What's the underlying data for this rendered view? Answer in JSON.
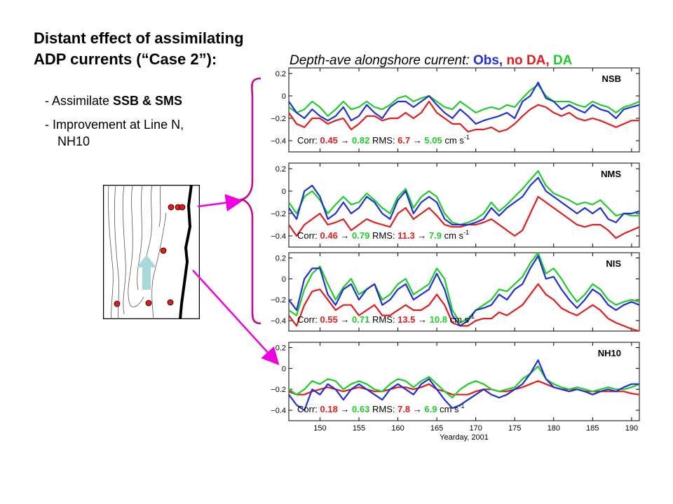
{
  "title": {
    "line1": "Distant effect of assimilating",
    "line2": "ADP currents (“Case 2”):"
  },
  "bullets": [
    {
      "prefix": "- Assimilate ",
      "bold": "SSB & SMS"
    },
    {
      "line1": "- Improvement at Line N,",
      "line2": "NH10"
    }
  ],
  "heading": {
    "text": "Depth-ave alongshore current: ",
    "obs": "Obs",
    "sep1": ", ",
    "nodа": "",
    "no_da": "no DA",
    "sep2": ", ",
    "da": "DA"
  },
  "colors": {
    "obs": "#1f2fd6",
    "no_da": "#e21c1c",
    "da": "#1fcc2a",
    "arrow": "#f000e0",
    "brace": "#c8008c",
    "map_arrow": "#a8d8d8"
  },
  "map": {
    "stations": 9
  },
  "chart_data": [
    {
      "type": "line",
      "panel_label": "NSB",
      "ylim": [
        -0.5,
        0.25
      ],
      "yticks": [
        "0.2",
        "0",
        "−0.2",
        "−0.4"
      ],
      "ytick_values": [
        0.2,
        0,
        -0.2,
        -0.4
      ],
      "xlim": [
        146,
        191
      ],
      "stats": {
        "corr_label": "Corr: ",
        "corr_before": "0.45",
        "corr_after": "0.82",
        "rms_label": "RMS: ",
        "rms_before": "6.7",
        "rms_after": "5.05",
        "unit": " cm s",
        "unit_exp": "-1"
      },
      "x": [
        146,
        147,
        148,
        149,
        150,
        151,
        152,
        153,
        154,
        155,
        156,
        157,
        158,
        159,
        160,
        161,
        162,
        163,
        164,
        165,
        166,
        167,
        168,
        169,
        170,
        171,
        172,
        173,
        174,
        175,
        176,
        177,
        178,
        179,
        180,
        181,
        182,
        183,
        184,
        185,
        186,
        187,
        188,
        189,
        190,
        191
      ],
      "series": [
        {
          "name": "Obs",
          "values": [
            -0.05,
            -0.15,
            -0.2,
            -0.12,
            -0.18,
            -0.22,
            -0.18,
            -0.1,
            -0.22,
            -0.18,
            -0.08,
            -0.15,
            -0.2,
            -0.1,
            -0.05,
            -0.05,
            -0.1,
            -0.05,
            0.0,
            -0.08,
            -0.15,
            -0.2,
            -0.12,
            -0.18,
            -0.25,
            -0.22,
            -0.2,
            -0.18,
            -0.15,
            -0.2,
            -0.05,
            0.0,
            0.12,
            -0.02,
            -0.05,
            -0.12,
            -0.08,
            -0.12,
            -0.15,
            -0.08,
            -0.12,
            -0.14,
            -0.2,
            -0.12,
            -0.1,
            -0.08
          ]
        },
        {
          "name": "no DA",
          "values": [
            -0.15,
            -0.25,
            -0.28,
            -0.2,
            -0.2,
            -0.25,
            -0.22,
            -0.2,
            -0.3,
            -0.25,
            -0.18,
            -0.18,
            -0.22,
            -0.2,
            -0.2,
            -0.15,
            -0.2,
            -0.15,
            -0.05,
            -0.15,
            -0.2,
            -0.25,
            -0.25,
            -0.32,
            -0.3,
            -0.3,
            -0.28,
            -0.32,
            -0.3,
            -0.25,
            -0.18,
            -0.12,
            -0.08,
            -0.1,
            -0.15,
            -0.18,
            -0.15,
            -0.2,
            -0.22,
            -0.2,
            -0.22,
            -0.25,
            -0.28,
            -0.25,
            -0.22,
            -0.22
          ]
        },
        {
          "name": "DA",
          "values": [
            -0.1,
            -0.15,
            -0.12,
            -0.05,
            -0.1,
            -0.18,
            -0.12,
            -0.05,
            -0.12,
            -0.1,
            -0.05,
            -0.1,
            -0.12,
            -0.08,
            -0.02,
            0.0,
            -0.05,
            -0.02,
            0.0,
            -0.05,
            -0.1,
            -0.12,
            -0.05,
            -0.1,
            -0.15,
            -0.12,
            -0.1,
            -0.12,
            -0.08,
            -0.1,
            -0.02,
            0.05,
            0.1,
            0.0,
            -0.05,
            -0.05,
            -0.05,
            -0.08,
            -0.1,
            -0.05,
            -0.08,
            -0.1,
            -0.15,
            -0.1,
            -0.08,
            -0.05
          ]
        }
      ]
    },
    {
      "type": "line",
      "panel_label": "NMS",
      "ylim": [
        -0.5,
        0.25
      ],
      "yticks": [
        "0.2",
        "0",
        "−0.2",
        "−0.4"
      ],
      "ytick_values": [
        0.2,
        0,
        -0.2,
        -0.4
      ],
      "xlim": [
        146,
        191
      ],
      "stats": {
        "corr_label": "Corr: ",
        "corr_before": "0.46",
        "corr_after": "0.79",
        "rms_label": "RMS: ",
        "rms_before": "11.3",
        "rms_after": "7.9",
        "unit": " cm s",
        "unit_exp": "-1"
      },
      "x": [
        146,
        147,
        148,
        149,
        150,
        151,
        152,
        153,
        154,
        155,
        156,
        157,
        158,
        159,
        160,
        161,
        162,
        163,
        164,
        165,
        166,
        167,
        168,
        169,
        170,
        171,
        172,
        173,
        174,
        175,
        176,
        177,
        178,
        179,
        180,
        181,
        182,
        183,
        184,
        185,
        186,
        187,
        188,
        189,
        190,
        191
      ],
      "series": [
        {
          "name": "Obs",
          "values": [
            -0.15,
            -0.25,
            0.0,
            0.05,
            -0.05,
            -0.25,
            -0.2,
            -0.1,
            -0.2,
            -0.15,
            -0.05,
            -0.1,
            -0.2,
            -0.25,
            -0.08,
            0.0,
            -0.2,
            -0.1,
            -0.05,
            -0.1,
            -0.25,
            -0.3,
            -0.3,
            -0.3,
            -0.28,
            -0.25,
            -0.15,
            -0.22,
            -0.15,
            -0.1,
            -0.05,
            0.05,
            0.12,
            0.0,
            -0.05,
            -0.1,
            -0.15,
            -0.2,
            -0.15,
            -0.2,
            -0.15,
            -0.25,
            -0.28,
            -0.2,
            -0.2,
            -0.18
          ]
        },
        {
          "name": "no DA",
          "values": [
            -0.3,
            -0.4,
            -0.3,
            -0.25,
            -0.2,
            -0.3,
            -0.28,
            -0.25,
            -0.35,
            -0.3,
            -0.25,
            -0.28,
            -0.3,
            -0.32,
            -0.2,
            -0.15,
            -0.25,
            -0.2,
            -0.15,
            -0.22,
            -0.3,
            -0.32,
            -0.32,
            -0.3,
            -0.3,
            -0.28,
            -0.25,
            -0.3,
            -0.35,
            -0.4,
            -0.35,
            -0.2,
            -0.05,
            -0.1,
            -0.15,
            -0.2,
            -0.25,
            -0.3,
            -0.32,
            -0.3,
            -0.3,
            -0.35,
            -0.42,
            -0.38,
            -0.35,
            -0.32
          ]
        },
        {
          "name": "DA",
          "values": [
            -0.1,
            -0.2,
            -0.05,
            0.0,
            -0.08,
            -0.2,
            -0.12,
            -0.05,
            -0.12,
            -0.1,
            -0.02,
            -0.08,
            -0.15,
            -0.2,
            -0.05,
            0.02,
            -0.15,
            -0.05,
            0.0,
            -0.05,
            -0.2,
            -0.28,
            -0.3,
            -0.28,
            -0.25,
            -0.2,
            -0.1,
            -0.18,
            -0.12,
            -0.05,
            0.02,
            0.1,
            0.18,
            0.05,
            -0.02,
            -0.05,
            -0.08,
            -0.12,
            -0.1,
            -0.12,
            -0.08,
            -0.15,
            -0.22,
            -0.2,
            -0.22,
            -0.22
          ]
        }
      ]
    },
    {
      "type": "line",
      "panel_label": "NIS",
      "ylim": [
        -0.5,
        0.25
      ],
      "yticks": [
        "0.2",
        "0",
        "−0.2",
        "−0.4"
      ],
      "ytick_values": [
        0.2,
        0,
        -0.2,
        -0.4
      ],
      "xlim": [
        146,
        191
      ],
      "stats": {
        "corr_label": "Corr: ",
        "corr_before": "0.55",
        "corr_after": "0.71",
        "rms_label": "RMS: ",
        "rms_before": "13.5",
        "rms_after": "10.8",
        "unit": " cm s",
        "unit_exp": "-1"
      },
      "x": [
        146,
        147,
        148,
        149,
        150,
        151,
        152,
        153,
        154,
        155,
        156,
        157,
        158,
        159,
        160,
        161,
        162,
        163,
        164,
        165,
        166,
        167,
        168,
        169,
        170,
        171,
        172,
        173,
        174,
        175,
        176,
        177,
        178,
        179,
        180,
        181,
        182,
        183,
        184,
        185,
        186,
        187,
        188,
        189,
        190,
        191
      ],
      "series": [
        {
          "name": "Obs",
          "values": [
            -0.2,
            -0.3,
            0.0,
            0.1,
            0.1,
            -0.15,
            -0.25,
            -0.1,
            -0.05,
            -0.2,
            -0.1,
            -0.05,
            -0.25,
            -0.2,
            -0.1,
            -0.05,
            -0.2,
            -0.15,
            -0.1,
            0.05,
            -0.1,
            -0.35,
            -0.45,
            -0.4,
            -0.3,
            -0.28,
            -0.25,
            -0.15,
            -0.2,
            -0.1,
            -0.05,
            0.1,
            0.22,
            0.0,
            0.02,
            -0.1,
            -0.2,
            -0.28,
            -0.2,
            -0.1,
            -0.15,
            -0.25,
            -0.3,
            -0.25,
            -0.22,
            -0.25
          ]
        },
        {
          "name": "no DA",
          "values": [
            -0.35,
            -0.45,
            -0.25,
            -0.12,
            -0.1,
            -0.2,
            -0.3,
            -0.25,
            -0.25,
            -0.35,
            -0.3,
            -0.25,
            -0.35,
            -0.35,
            -0.3,
            -0.25,
            -0.3,
            -0.3,
            -0.25,
            -0.15,
            -0.25,
            -0.42,
            -0.45,
            -0.45,
            -0.4,
            -0.38,
            -0.38,
            -0.32,
            -0.35,
            -0.3,
            -0.25,
            -0.15,
            -0.05,
            -0.15,
            -0.2,
            -0.28,
            -0.32,
            -0.35,
            -0.3,
            -0.25,
            -0.3,
            -0.38,
            -0.42,
            -0.45,
            -0.48,
            -0.5
          ]
        },
        {
          "name": "DA",
          "values": [
            -0.3,
            -0.35,
            -0.1,
            0.05,
            0.12,
            -0.05,
            -0.2,
            -0.08,
            0.0,
            -0.15,
            -0.1,
            -0.05,
            -0.2,
            -0.15,
            -0.05,
            0.0,
            -0.15,
            -0.1,
            -0.05,
            0.1,
            0.0,
            -0.3,
            -0.42,
            -0.38,
            -0.3,
            -0.25,
            -0.2,
            -0.1,
            -0.12,
            -0.05,
            0.02,
            0.15,
            0.25,
            0.05,
            0.1,
            0.0,
            -0.12,
            -0.22,
            -0.15,
            -0.05,
            -0.1,
            -0.2,
            -0.25,
            -0.22,
            -0.2,
            -0.22
          ]
        }
      ]
    },
    {
      "type": "line",
      "panel_label": "NH10",
      "ylim": [
        -0.5,
        0.25
      ],
      "yticks": [
        "0.2",
        "0",
        "−0.2",
        "−0.4"
      ],
      "ytick_values": [
        0.2,
        0,
        -0.2,
        -0.4
      ],
      "xlim": [
        146,
        191
      ],
      "xticks": [
        "150",
        "155",
        "160",
        "165",
        "170",
        "175",
        "180",
        "185",
        "190"
      ],
      "xtick_values": [
        150,
        155,
        160,
        165,
        170,
        175,
        180,
        185,
        190
      ],
      "xlabel": "Yearday, 2001",
      "stats": {
        "corr_label": "Corr: ",
        "corr_before": "0.18",
        "corr_after": "0.63",
        "rms_label": "RMS: ",
        "rms_before": "7.8",
        "rms_after": "6.9",
        "unit": " cm s",
        "unit_exp": "-1"
      },
      "x": [
        146,
        147,
        148,
        149,
        150,
        151,
        152,
        153,
        154,
        155,
        156,
        157,
        158,
        159,
        160,
        161,
        162,
        163,
        164,
        165,
        166,
        167,
        168,
        169,
        170,
        171,
        172,
        173,
        174,
        175,
        176,
        177,
        178,
        179,
        180,
        181,
        182,
        183,
        184,
        185,
        186,
        187,
        188,
        189,
        190,
        191
      ],
      "series": [
        {
          "name": "Obs",
          "values": [
            -0.25,
            -0.35,
            -0.4,
            -0.2,
            -0.25,
            -0.15,
            -0.2,
            -0.3,
            -0.2,
            -0.15,
            -0.2,
            -0.25,
            -0.3,
            -0.2,
            -0.15,
            -0.2,
            -0.25,
            -0.15,
            -0.1,
            -0.2,
            -0.3,
            -0.38,
            -0.35,
            -0.3,
            -0.25,
            -0.2,
            -0.25,
            -0.28,
            -0.25,
            -0.2,
            -0.15,
            -0.05,
            0.08,
            -0.1,
            -0.18,
            -0.2,
            -0.22,
            -0.2,
            -0.22,
            -0.25,
            -0.22,
            -0.2,
            -0.22,
            -0.18,
            -0.15,
            -0.15
          ]
        },
        {
          "name": "no DA",
          "values": [
            -0.22,
            -0.25,
            -0.25,
            -0.22,
            -0.2,
            -0.18,
            -0.2,
            -0.22,
            -0.2,
            -0.18,
            -0.2,
            -0.22,
            -0.22,
            -0.2,
            -0.18,
            -0.18,
            -0.2,
            -0.18,
            -0.15,
            -0.2,
            -0.22,
            -0.25,
            -0.25,
            -0.25,
            -0.22,
            -0.2,
            -0.2,
            -0.22,
            -0.22,
            -0.2,
            -0.18,
            -0.15,
            -0.12,
            -0.15,
            -0.18,
            -0.2,
            -0.2,
            -0.2,
            -0.22,
            -0.22,
            -0.22,
            -0.22,
            -0.22,
            -0.22,
            -0.24,
            -0.25
          ]
        },
        {
          "name": "DA",
          "values": [
            -0.2,
            -0.25,
            -0.2,
            -0.12,
            -0.15,
            -0.1,
            -0.12,
            -0.2,
            -0.15,
            -0.12,
            -0.15,
            -0.2,
            -0.22,
            -0.15,
            -0.1,
            -0.12,
            -0.18,
            -0.12,
            -0.08,
            -0.15,
            -0.22,
            -0.28,
            -0.2,
            -0.15,
            -0.12,
            -0.15,
            -0.2,
            -0.22,
            -0.2,
            -0.18,
            -0.1,
            -0.05,
            0.02,
            -0.1,
            -0.15,
            -0.18,
            -0.2,
            -0.18,
            -0.2,
            -0.22,
            -0.2,
            -0.18,
            -0.2,
            -0.2,
            -0.18,
            -0.15
          ]
        }
      ]
    }
  ]
}
